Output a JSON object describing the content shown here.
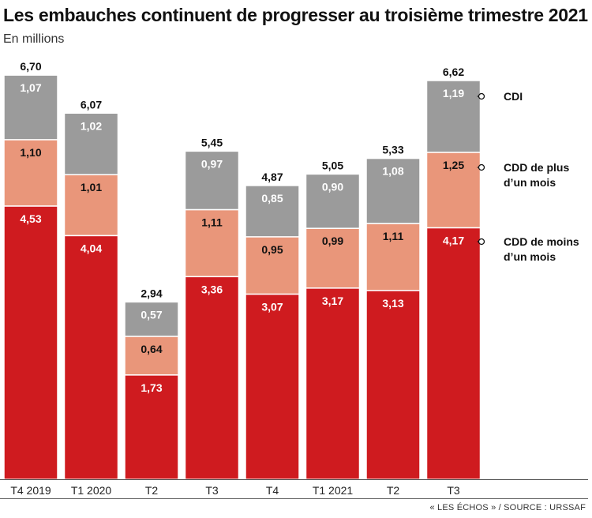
{
  "header": {
    "title": "Les embauches continuent de progresser au troisième trimestre 2021",
    "subtitle": "En millions"
  },
  "source": "« LES ÉCHOS » / SOURCE : URSSAF",
  "chart_data": {
    "type": "bar",
    "stacked": true,
    "title": "Les embauches continuent de progresser au troisième trimestre 2021",
    "subtitle": "En millions",
    "xlabel": "",
    "ylabel": "",
    "categories": [
      "T4 2019",
      "T1 2020",
      "T2",
      "T3",
      "T4",
      "T1 2021",
      "T2",
      "T3"
    ],
    "totals": [
      "6,70",
      "6,07",
      "2,94",
      "5,45",
      "4,87",
      "5,05",
      "5,33",
      "6,62"
    ],
    "series": [
      {
        "name": "CDD de moins d’un mois",
        "color": "#cf1b1f",
        "label_color": "#ffffff",
        "values": [
          4.53,
          4.04,
          1.73,
          3.36,
          3.07,
          3.17,
          3.13,
          4.17
        ],
        "labels": [
          "4,53",
          "4,04",
          "1,73",
          "3,36",
          "3,07",
          "3,17",
          "3,13",
          "4,17"
        ]
      },
      {
        "name": "CDD de plus d’un mois",
        "color": "#e9967a",
        "label_color": "#111111",
        "values": [
          1.1,
          1.01,
          0.64,
          1.11,
          0.95,
          0.99,
          1.11,
          1.25
        ],
        "labels": [
          "1,10",
          "1,01",
          "0,64",
          "1,11",
          "0,95",
          "0,99",
          "1,11",
          "1,25"
        ]
      },
      {
        "name": "CDI",
        "color": "#9b9b9b",
        "label_color": "#ffffff",
        "values": [
          1.07,
          1.02,
          0.57,
          0.97,
          0.85,
          0.9,
          1.08,
          1.19
        ],
        "labels": [
          "1,07",
          "1,02",
          "0,57",
          "0,97",
          "0,85",
          "0,90",
          "1,08",
          "1,19"
        ]
      }
    ],
    "legend": [
      {
        "lines": [
          "CDI"
        ]
      },
      {
        "lines": [
          "CDD de plus",
          "d’un mois"
        ]
      },
      {
        "lines": [
          "CDD de moins",
          "d’un mois"
        ]
      }
    ],
    "legend_position": "right",
    "ylim": [
      0,
      7
    ],
    "grid": false
  }
}
